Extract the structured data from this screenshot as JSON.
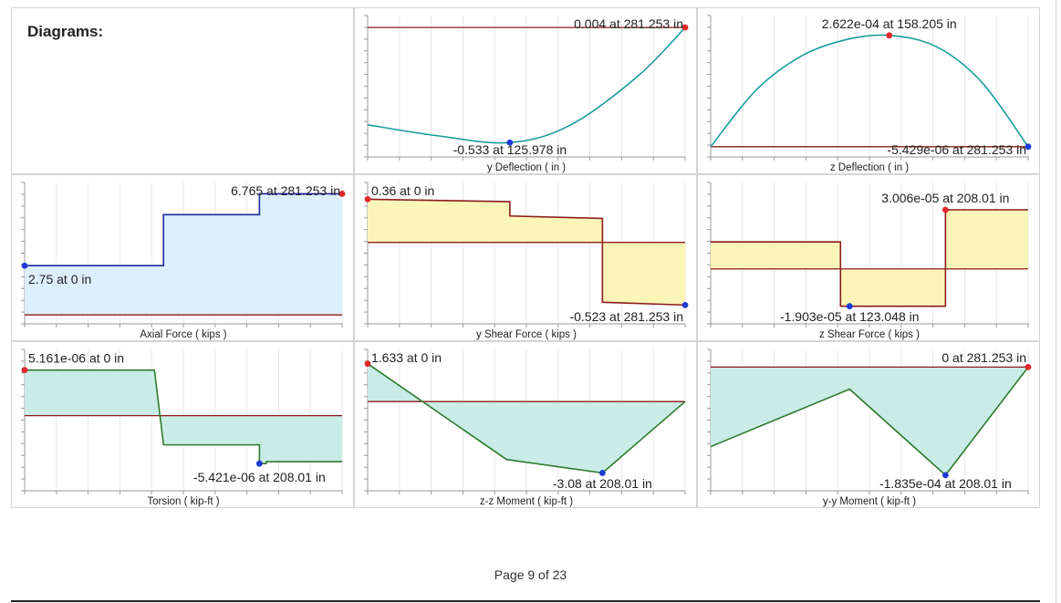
{
  "heading": "Diagrams:",
  "footer": {
    "page_label": "Page 9 of 23"
  },
  "colors": {
    "teal": "#1a9c9c",
    "navy": "#1a2a9c",
    "dark_red": "#8b1b1b",
    "green": "#2f7a2f",
    "fill_blue": "#dcefff",
    "fill_yellow": "#fbf6b8",
    "fill_teal": "#c9ece6",
    "max_marker": "#e0262b",
    "min_marker": "#1f3bd6"
  },
  "chart_data": [
    {
      "id": "y-deflection",
      "type": "line",
      "xlabel": "y Deflection ( in )",
      "xlim": [
        0,
        281.253
      ],
      "ylim": [
        -0.6,
        0.06
      ],
      "zero_line": 0.004,
      "fill": false,
      "x": [
        0,
        60,
        125.978,
        180,
        240,
        281.253
      ],
      "y": [
        -0.45,
        -0.5,
        -0.533,
        -0.45,
        -0.22,
        0.004
      ],
      "annotations": [
        {
          "text": "0.004 at 281.253 in",
          "x": 281.253,
          "y": 0.004,
          "kind": "max"
        },
        {
          "text": "-0.533 at 125.978 in",
          "x": 125.978,
          "y": -0.533,
          "kind": "min"
        }
      ]
    },
    {
      "id": "z-deflection",
      "type": "line",
      "xlabel": "z Deflection ( in )",
      "xlim": [
        0,
        281.253
      ],
      "ylim": [
        -3e-05,
        0.00031
      ],
      "zero_line": -5.429e-06,
      "fill": false,
      "x": [
        0,
        40,
        80,
        120,
        158.205,
        200,
        240,
        281.253
      ],
      "y": [
        -5.429e-06,
        0.00013,
        0.000212,
        0.000252,
        0.0002622,
        0.000235,
        0.00015,
        -5.429e-06
      ],
      "annotations": [
        {
          "text": "2.622e-04 at 158.205 in",
          "x": 158.205,
          "y": 0.0002622,
          "kind": "max"
        },
        {
          "text": "-5.429e-06 at 281.253 in",
          "x": 281.253,
          "y": -5.429e-06,
          "kind": "min"
        }
      ]
    },
    {
      "id": "axial-force",
      "type": "area",
      "xlabel": "Axial Force ( kips )",
      "xlim": [
        0,
        281.253
      ],
      "ylim": [
        -0.5,
        7.4
      ],
      "zero_line": 0,
      "fill": true,
      "x": [
        0,
        123.048,
        123.048,
        208.01,
        208.01,
        281.253
      ],
      "y": [
        2.75,
        2.75,
        5.6,
        5.6,
        6.765,
        6.765
      ],
      "annotations": [
        {
          "text": "6.765 at 281.253 in",
          "x": 281.253,
          "y": 6.765,
          "kind": "max"
        },
        {
          "text": "2.75 at 0 in",
          "x": 0,
          "y": 2.75,
          "kind": "min"
        }
      ]
    },
    {
      "id": "y-shear-force",
      "type": "area",
      "xlabel": "y Shear Force ( kips )",
      "xlim": [
        0,
        281.253
      ],
      "ylim": [
        -0.68,
        0.5
      ],
      "zero_line": 0,
      "fill": true,
      "x": [
        0,
        125.978,
        125.978,
        208.01,
        208.01,
        281.253
      ],
      "y": [
        0.36,
        0.34,
        0.22,
        0.2,
        -0.5,
        -0.523
      ],
      "annotations": [
        {
          "text": "0.36 at 0 in",
          "x": 0,
          "y": 0.36,
          "kind": "max"
        },
        {
          "text": "-0.523 at 281.253 in",
          "x": 281.253,
          "y": -0.523,
          "kind": "min"
        }
      ]
    },
    {
      "id": "z-shear-force",
      "type": "area",
      "xlabel": "z Shear Force ( kips )",
      "xlim": [
        0,
        281.253
      ],
      "ylim": [
        -2.8e-05,
        4.4e-05
      ],
      "zero_line": 0,
      "fill": true,
      "x": [
        0,
        115,
        115,
        123.048,
        208.01,
        208.01,
        281.253
      ],
      "y": [
        1.37e-05,
        1.37e-05,
        -1.9e-05,
        -1.903e-05,
        -1.903e-05,
        3.006e-05,
        3.006e-05
      ],
      "annotations": [
        {
          "text": "3.006e-05 at 208.01 in",
          "x": 208.01,
          "y": 3.006e-05,
          "kind": "max"
        },
        {
          "text": "-1.903e-05 at 123.048 in",
          "x": 123.048,
          "y": -1.903e-05,
          "kind": "min"
        }
      ]
    },
    {
      "id": "torsion",
      "type": "area",
      "xlabel": "Torsion ( kip-ft )",
      "xlim": [
        0,
        281.253
      ],
      "ylim": [
        -8.5e-06,
        7.5e-06
      ],
      "zero_line": 0,
      "fill": true,
      "x": [
        0,
        115,
        123.048,
        208.01,
        208.01,
        214,
        214,
        281.253
      ],
      "y": [
        5.161e-06,
        5.161e-06,
        -3.3e-06,
        -3.3e-06,
        -5.421e-06,
        -5.421e-06,
        -5.2e-06,
        -5.2e-06
      ],
      "annotations": [
        {
          "text": "5.161e-06 at 0 in",
          "x": 0,
          "y": 5.161e-06,
          "kind": "max"
        },
        {
          "text": "-5.421e-06 at 208.01 in",
          "x": 208.01,
          "y": -5.421e-06,
          "kind": "min"
        }
      ]
    },
    {
      "id": "z-z-moment",
      "type": "area",
      "xlabel": "z-z Moment ( kip-ft )",
      "xlim": [
        0,
        281.253
      ],
      "ylim": [
        -3.85,
        2.25
      ],
      "zero_line": 0,
      "fill": true,
      "x": [
        0,
        123.048,
        208.01,
        281.253
      ],
      "y": [
        1.633,
        -2.5,
        -3.08,
        0
      ],
      "annotations": [
        {
          "text": "1.633 at 0 in",
          "x": 0,
          "y": 1.633,
          "kind": "max"
        },
        {
          "text": "-3.08 at 208.01 in",
          "x": 208.01,
          "y": -3.08,
          "kind": "min"
        }
      ]
    },
    {
      "id": "y-y-moment",
      "type": "area",
      "xlabel": "y-y Moment ( kip-ft )",
      "xlim": [
        0,
        281.253
      ],
      "ylim": [
        -0.00021,
        3e-05
      ],
      "zero_line": 0,
      "fill": true,
      "x": [
        0,
        123.048,
        208.01,
        281.253
      ],
      "y": [
        -0.000135,
        -3.75e-05,
        -0.0001835,
        0
      ],
      "annotations": [
        {
          "text": "0 at 281.253 in",
          "x": 281.253,
          "y": 0,
          "kind": "max"
        },
        {
          "text": "-1.835e-04 at 208.01 in",
          "x": 208.01,
          "y": -0.0001835,
          "kind": "min"
        }
      ]
    }
  ]
}
